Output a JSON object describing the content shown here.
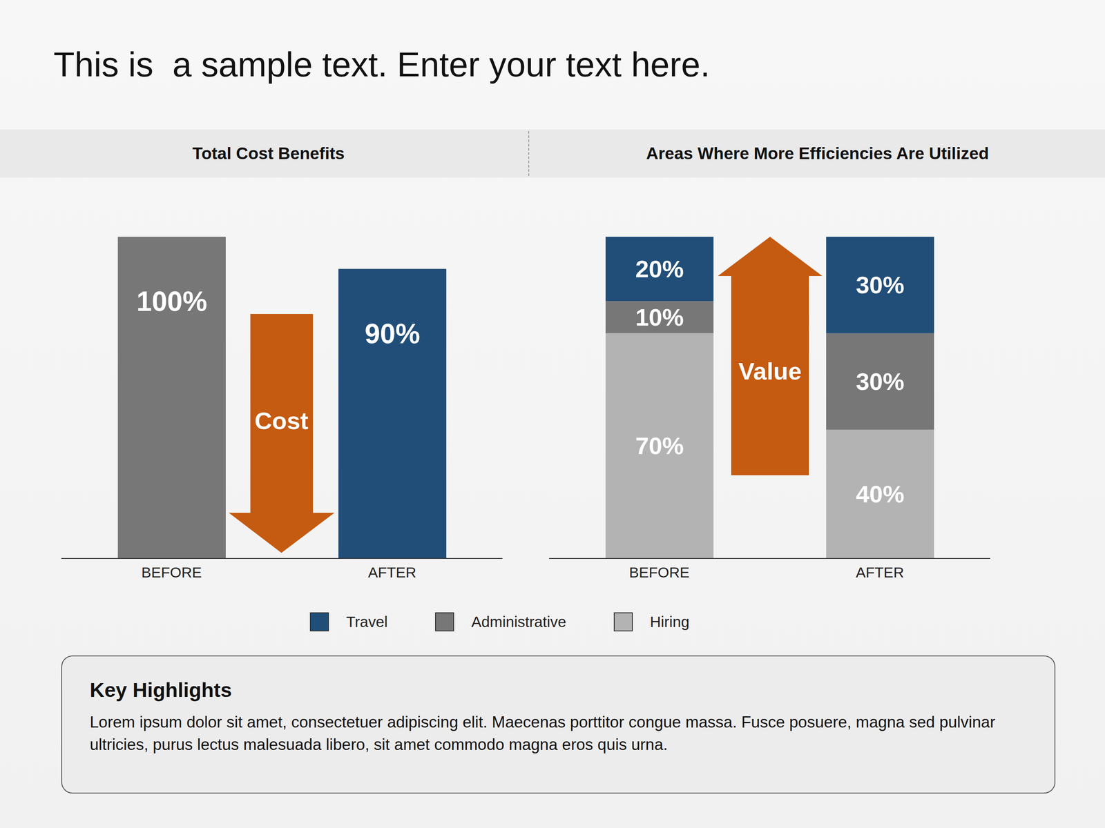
{
  "title": "This is  a sample text. Enter your text here.",
  "chart_data": [
    {
      "type": "bar",
      "title": "Total Cost Benefits",
      "categories": [
        "BEFORE",
        "AFTER"
      ],
      "values": [
        100,
        90
      ],
      "value_labels": [
        "100%",
        "90%"
      ],
      "colors": [
        "#777777",
        "#214e78"
      ],
      "ylim": [
        0,
        100
      ],
      "data_labels": true,
      "tick_labels": "x",
      "annotations": [
        "Cost"
      ]
    },
    {
      "type": "bar",
      "title": "Areas Where More Efficiencies Are Utilized",
      "stacked": true,
      "categories": [
        "BEFORE",
        "AFTER"
      ],
      "series": [
        {
          "name": "Travel",
          "color": "#214e78",
          "values": [
            20,
            30
          ],
          "value_labels": [
            "20%",
            "30%"
          ]
        },
        {
          "name": "Administrative",
          "color": "#777777",
          "values": [
            10,
            30
          ],
          "value_labels": [
            "10%",
            "30%"
          ]
        },
        {
          "name": "Hiring",
          "color": "#b3b3b3",
          "values": [
            70,
            40
          ],
          "value_labels": [
            "70%",
            "40%"
          ]
        }
      ],
      "ylim": [
        0,
        100
      ],
      "data_labels": true,
      "tick_labels": "x",
      "legend": "bottom",
      "annotations": [
        "Value"
      ]
    }
  ],
  "key_highlights": {
    "title": "Key Highlights",
    "text": "Lorem ipsum dolor sit amet, consectetuer adipiscing elit. Maecenas porttitor congue massa. Fusce posuere, magna sed pulvinar ultricies, purus lectus malesuada libero, sit amet commodo magna eros quis urna."
  }
}
